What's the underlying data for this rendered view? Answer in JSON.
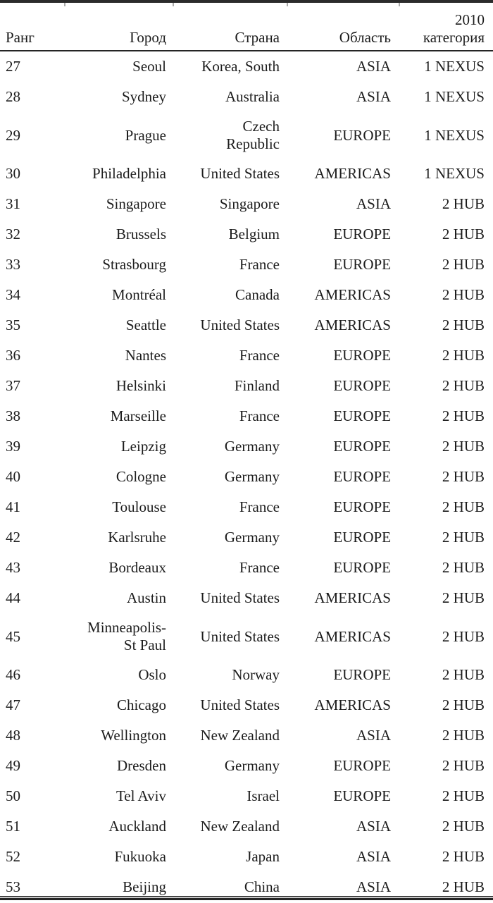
{
  "table": {
    "header": {
      "rank": "Ранг",
      "city": "Город",
      "country": "Страна",
      "region": "Область",
      "category": "2010\nкатегория"
    },
    "rows": [
      {
        "rank": "27",
        "city": "Seoul",
        "country": "Korea, South",
        "region": "ASIA",
        "category": "1 NEXUS"
      },
      {
        "rank": "28",
        "city": "Sydney",
        "country": "Australia",
        "region": "ASIA",
        "category": "1 NEXUS"
      },
      {
        "rank": "29",
        "city": "Prague",
        "country": "Czech\nRepublic",
        "region": "EUROPE",
        "category": "1 NEXUS"
      },
      {
        "rank": "30",
        "city": "Philadelphia",
        "country": "United States",
        "region": "AMERICAS",
        "category": "1 NEXUS"
      },
      {
        "rank": "31",
        "city": "Singapore",
        "country": "Singapore",
        "region": "ASIA",
        "category": "2 HUB"
      },
      {
        "rank": "32",
        "city": "Brussels",
        "country": "Belgium",
        "region": "EUROPE",
        "category": "2 HUB"
      },
      {
        "rank": "33",
        "city": "Strasbourg",
        "country": "France",
        "region": "EUROPE",
        "category": "2 HUB"
      },
      {
        "rank": "34",
        "city": "Montréal",
        "country": "Canada",
        "region": "AMERICAS",
        "category": "2 HUB"
      },
      {
        "rank": "35",
        "city": "Seattle",
        "country": "United States",
        "region": "AMERICAS",
        "category": "2 HUB"
      },
      {
        "rank": "36",
        "city": "Nantes",
        "country": "France",
        "region": "EUROPE",
        "category": "2 HUB"
      },
      {
        "rank": "37",
        "city": "Helsinki",
        "country": "Finland",
        "region": "EUROPE",
        "category": "2 HUB"
      },
      {
        "rank": "38",
        "city": "Marseille",
        "country": "France",
        "region": "EUROPE",
        "category": "2 HUB"
      },
      {
        "rank": "39",
        "city": "Leipzig",
        "country": "Germany",
        "region": "EUROPE",
        "category": "2 HUB"
      },
      {
        "rank": "40",
        "city": "Cologne",
        "country": "Germany",
        "region": "EUROPE",
        "category": "2 HUB"
      },
      {
        "rank": "41",
        "city": "Toulouse",
        "country": "France",
        "region": "EUROPE",
        "category": "2 HUB"
      },
      {
        "rank": "42",
        "city": "Karlsruhe",
        "country": "Germany",
        "region": "EUROPE",
        "category": "2 HUB"
      },
      {
        "rank": "43",
        "city": "Bordeaux",
        "country": "France",
        "region": "EUROPE",
        "category": "2 HUB"
      },
      {
        "rank": "44",
        "city": "Austin",
        "country": "United States",
        "region": "AMERICAS",
        "category": "2 HUB"
      },
      {
        "rank": "45",
        "city": "Minneapolis-\nSt Paul",
        "country": "United States",
        "region": "AMERICAS",
        "category": "2 HUB"
      },
      {
        "rank": "46",
        "city": "Oslo",
        "country": "Norway",
        "region": "EUROPE",
        "category": "2 HUB"
      },
      {
        "rank": "47",
        "city": "Chicago",
        "country": "United States",
        "region": "AMERICAS",
        "category": "2 HUB"
      },
      {
        "rank": "48",
        "city": "Wellington",
        "country": "New Zealand",
        "region": "ASIA",
        "category": "2 HUB"
      },
      {
        "rank": "49",
        "city": "Dresden",
        "country": "Germany",
        "region": "EUROPE",
        "category": "2 HUB"
      },
      {
        "rank": "50",
        "city": "Tel Aviv",
        "country": "Israel",
        "region": "EUROPE",
        "category": "2 HUB"
      },
      {
        "rank": "51",
        "city": "Auckland",
        "country": "New Zealand",
        "region": "ASIA",
        "category": "2 HUB"
      },
      {
        "rank": "52",
        "city": "Fukuoka",
        "country": "Japan",
        "region": "ASIA",
        "category": "2 HUB"
      },
      {
        "rank": "53",
        "city": "Beijing",
        "country": "China",
        "region": "ASIA",
        "category": "2 HUB"
      }
    ]
  },
  "colors": {
    "text": "#1c1c1c",
    "top_bar": "#2b2b2b",
    "header_rule": "#242424",
    "column_tick": "#a9a9a9",
    "bottom_rule_thin": "#444444",
    "bottom_rule_thick": "#242424",
    "background": "#ffffff"
  }
}
